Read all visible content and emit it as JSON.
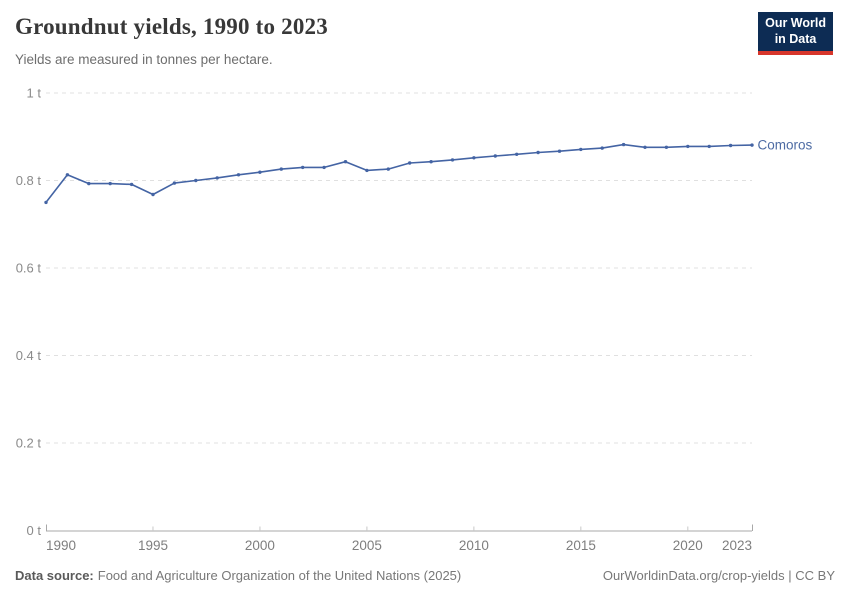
{
  "header": {
    "title": "Groundnut yields, 1990 to 2023",
    "subtitle": "Yields are measured in tonnes per hectare.",
    "logo": {
      "line1": "Our World",
      "line2": "in Data"
    }
  },
  "chart_data": {
    "type": "line",
    "title": "Groundnut yields, 1990 to 2023",
    "ylabel": "tonnes per hectare",
    "xlabel": "",
    "grid": "horizontal-dashed",
    "legend_position": "end-of-line",
    "xlim": [
      1990,
      2023
    ],
    "ylim": [
      0,
      1
    ],
    "x_ticks": [
      {
        "value": 1990,
        "label": "1990"
      },
      {
        "value": 1995,
        "label": "1995"
      },
      {
        "value": 2000,
        "label": "2000"
      },
      {
        "value": 2005,
        "label": "2005"
      },
      {
        "value": 2010,
        "label": "2010"
      },
      {
        "value": 2015,
        "label": "2015"
      },
      {
        "value": 2020,
        "label": "2020"
      },
      {
        "value": 2023,
        "label": "2023"
      }
    ],
    "y_ticks": [
      {
        "value": 0,
        "label": "0 t"
      },
      {
        "value": 0.2,
        "label": "0.2 t"
      },
      {
        "value": 0.4,
        "label": "0.4 t"
      },
      {
        "value": 0.6,
        "label": "0.6 t"
      },
      {
        "value": 0.8,
        "label": "0.8 t"
      },
      {
        "value": 1,
        "label": "1 t"
      }
    ],
    "series": [
      {
        "name": "Comoros",
        "x": [
          1990,
          1991,
          1992,
          1993,
          1994,
          1995,
          1996,
          1997,
          1998,
          1999,
          2000,
          2001,
          2002,
          2003,
          2004,
          2005,
          2006,
          2007,
          2008,
          2009,
          2010,
          2011,
          2012,
          2013,
          2014,
          2015,
          2016,
          2017,
          2018,
          2019,
          2020,
          2021,
          2022,
          2023
        ],
        "values": [
          0.75,
          0.813,
          0.793,
          0.793,
          0.791,
          0.768,
          0.794,
          0.8,
          0.806,
          0.813,
          0.819,
          0.826,
          0.83,
          0.83,
          0.843,
          0.823,
          0.826,
          0.84,
          0.843,
          0.847,
          0.852,
          0.856,
          0.86,
          0.864,
          0.867,
          0.871,
          0.874,
          0.882,
          0.876,
          0.876,
          0.878,
          0.878,
          0.88,
          0.881
        ]
      }
    ]
  },
  "footer": {
    "source_label": "Data source:",
    "source_name": "Food and Agriculture Organization of the United Nations (2025)",
    "credit": "OurWorldinData.org/crop-yields | CC BY"
  },
  "colors": {
    "line": "#4464a4",
    "series_label": "#4d6ba3",
    "grid": "#e0e0e0",
    "axis": "#a8a8a8",
    "tick": "#c8c8c8",
    "y_tick_label": "#8a8a8a",
    "x_tick_label": "#7e7e7e",
    "logo_bg": "#0d2c54",
    "logo_bar": "#d7362b"
  }
}
